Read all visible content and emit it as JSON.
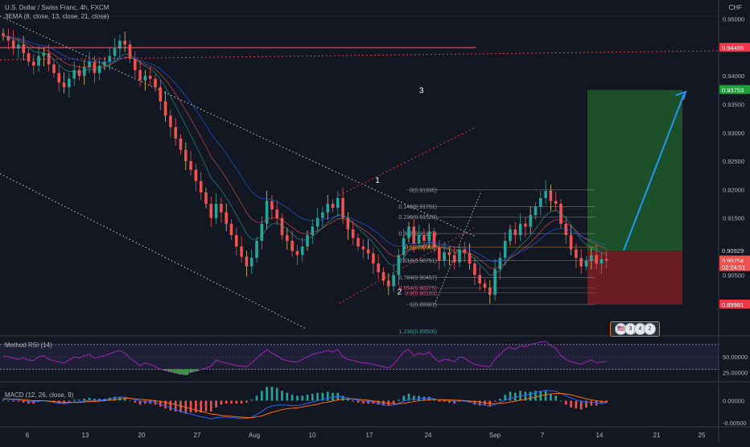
{
  "header": {
    "symbol": "U.S. Dollar / Swiss Franc, 4h, FXCM",
    "indicator": "3EMA (8, close, 13, close, 21, close)",
    "currency": "CHF"
  },
  "panes": {
    "rsi_title": "Method RSI (14)",
    "macd_title": "MACD (12, 26, close, 9)"
  },
  "colors": {
    "background": "#131722",
    "up": "#26a69a",
    "down": "#ef5350",
    "wick_yellow": "#e0c060",
    "target_zone": "#1e5a2a",
    "stop_zone": "#7a1f24",
    "arrow": "#2196f3",
    "resistance": "#f23645",
    "rsi": "#9c27b0"
  },
  "annotations": [
    {
      "label": "1",
      "date": "Sep 8",
      "price": 0.9212
    },
    {
      "label": "2",
      "date": "Sep 12",
      "price": 0.9016
    },
    {
      "label": "3",
      "date": "Sep 16",
      "price": 0.937
    }
  ],
  "bubbles": [
    "3",
    "4",
    "2"
  ],
  "chart_data": {
    "type": "candlestick",
    "x_ticks": [
      "6",
      "13",
      "20",
      "27",
      "Aug",
      "10",
      "17",
      "24",
      "Sep",
      "7",
      "14",
      "21",
      "25"
    ],
    "y_ticks": [
      "0.95000",
      "0.94500",
      "0.94000",
      "0.93500",
      "0.93000",
      "0.92500",
      "0.92000",
      "0.91500",
      "0.90500",
      "0.90000"
    ],
    "ylim": [
      0.895,
      0.9505
    ],
    "price_labels": [
      {
        "text": "0.94495",
        "price": 0.94495,
        "color": "#f23645"
      },
      {
        "text": "0.93753",
        "price": 0.93753,
        "color": "#1e9e3c"
      },
      {
        "text": "0.90929",
        "price": 0.90929,
        "color": "#131722"
      },
      {
        "text": "0.90754",
        "price": 0.90754,
        "color": "#ef5350"
      },
      {
        "text": "02:24:51",
        "price": 0.9064,
        "color": "#ef5350"
      },
      {
        "text": "0.89981",
        "price": 0.89981,
        "color": "#f23645"
      }
    ],
    "fibonacci": [
      {
        "label": "0(0.91995)",
        "price": 0.91995,
        "color": "#9598a1"
      },
      {
        "label": "0.146(0.91701)",
        "price": 0.91701,
        "color": "#9598a1"
      },
      {
        "label": "0.236(0.91520)",
        "price": 0.9152,
        "color": "#9598a1"
      },
      {
        "label": "0.382(0.91227)",
        "price": 0.91227,
        "color": "#9598a1"
      },
      {
        "label": "0.5(0.90988)",
        "price": 0.90988,
        "color": "#f0a030"
      },
      {
        "label": "0.618(0.90751)",
        "price": 0.90751,
        "color": "#9598a1"
      },
      {
        "label": "0.764(0.90457)",
        "price": 0.90457,
        "color": "#9598a1"
      },
      {
        "label": "0.854(0.90275)",
        "price": 0.90275,
        "color": "#e05070"
      },
      {
        "label": "0.9(0.90183)",
        "price": 0.90183,
        "color": "#e05070"
      },
      {
        "label": "1(0.89981)",
        "price": 0.89981,
        "color": "#9598a1"
      },
      {
        "label": "1.236(0.89506)",
        "price": 0.89506,
        "color": "#26a69a"
      }
    ],
    "series": [
      {
        "name": "USDCHF",
        "close": [
          0.947,
          0.9462,
          0.9448,
          0.9455,
          0.944,
          0.9425,
          0.9418,
          0.9435,
          0.944,
          0.942,
          0.9405,
          0.9388,
          0.938,
          0.9395,
          0.941,
          0.94,
          0.9415,
          0.9425,
          0.9405,
          0.9418,
          0.9425,
          0.9435,
          0.9448,
          0.9462,
          0.9455,
          0.943,
          0.941,
          0.9392,
          0.94,
          0.9395,
          0.938,
          0.9355,
          0.933,
          0.931,
          0.929,
          0.927,
          0.925,
          0.9235,
          0.9215,
          0.9195,
          0.9175,
          0.915,
          0.9175,
          0.916,
          0.914,
          0.912,
          0.91,
          0.9082,
          0.9065,
          0.908,
          0.911,
          0.914,
          0.918,
          0.9165,
          0.915,
          0.912,
          0.911,
          0.9092,
          0.9085,
          0.91,
          0.912,
          0.9135,
          0.915,
          0.916,
          0.9175,
          0.9168,
          0.9185,
          0.915,
          0.913,
          0.9115,
          0.91,
          0.9095,
          0.9088,
          0.907,
          0.9055,
          0.904,
          0.903,
          0.905,
          0.9085,
          0.9115,
          0.9135,
          0.9105,
          0.912,
          0.911,
          0.9125,
          0.9098,
          0.9075,
          0.909,
          0.9085,
          0.9072,
          0.9095,
          0.9088,
          0.907,
          0.905,
          0.9035,
          0.9028,
          0.9015,
          0.906,
          0.908,
          0.911,
          0.913,
          0.912,
          0.914,
          0.9135,
          0.9155,
          0.917,
          0.9185,
          0.9198,
          0.918,
          0.9175,
          0.914,
          0.912,
          0.9095,
          0.908,
          0.9065,
          0.9075,
          0.9085,
          0.907,
          0.9078,
          0.9075
        ]
      }
    ],
    "fit_line": [
      {
        "name": "descending-channel-top",
        "from": [
          "Jul 1",
          0.9505
        ],
        "to": [
          "Sep 26",
          0.9117
        ]
      },
      {
        "name": "descending-channel-bottom",
        "from": [
          "Jul 1",
          0.9228
        ],
        "to": [
          "Aug 26",
          0.8955
        ]
      },
      {
        "name": "resistance",
        "from": [
          "Jul 1",
          0.94495
        ],
        "to": [
          "Sep 26",
          0.94495
        ]
      },
      {
        "name": "trend-upper",
        "from": [
          "Sep 1",
          0.919
        ],
        "to": [
          "Sep 26",
          0.931
        ]
      },
      {
        "name": "trend-lower",
        "from": [
          "Sep 1",
          0.9
        ],
        "to": [
          "Sep 26",
          0.9135
        ]
      }
    ],
    "position": {
      "entry": 0.90929,
      "target": 0.93753,
      "stop": 0.89981
    },
    "rsi": {
      "ylim": [
        15,
        80
      ],
      "y_ticks": [
        "50.00000",
        "25.00000"
      ],
      "upper": 70,
      "lower": 30,
      "values": [
        52,
        50,
        48,
        46,
        48,
        45,
        44,
        50,
        52,
        46,
        44,
        42,
        40,
        45,
        50,
        48,
        52,
        54,
        48,
        50,
        52,
        55,
        58,
        60,
        56,
        48,
        42,
        36,
        40,
        38,
        34,
        30,
        28,
        26,
        24,
        22,
        21,
        25,
        27,
        30,
        32,
        35,
        45,
        42,
        40,
        38,
        36,
        35,
        34,
        40,
        48,
        55,
        62,
        56,
        52,
        46,
        44,
        42,
        42,
        46,
        50,
        54,
        56,
        58,
        60,
        58,
        62,
        50,
        46,
        44,
        42,
        40,
        40,
        38,
        36,
        34,
        32,
        38,
        48,
        58,
        62,
        52,
        56,
        54,
        58,
        48,
        42,
        46,
        45,
        42,
        50,
        48,
        42,
        38,
        36,
        35,
        34,
        46,
        54,
        62,
        66,
        62,
        68,
        66,
        70,
        72,
        74,
        75,
        68,
        64,
        52,
        46,
        42,
        40,
        38,
        42,
        45,
        40,
        42,
        42
      ]
    },
    "macd": {
      "ylim": [
        -0.0055,
        0.0035
      ],
      "y_ticks": [
        "0.00000",
        "-0.00500"
      ],
      "macd": [
        0.0005,
        0.0004,
        0.0002,
        0.0002,
        0.0,
        -0.0002,
        -0.0003,
        -0.0001,
        0.0,
        -0.0002,
        -0.0004,
        -0.0006,
        -0.0007,
        -0.0005,
        -0.0003,
        -0.0003,
        -0.0001,
        0.0001,
        0.0,
        0.0001,
        0.0002,
        0.0004,
        0.0006,
        0.0008,
        0.0008,
        0.0005,
        0.0002,
        -0.0001,
        -0.0001,
        -0.0002,
        -0.0004,
        -0.0008,
        -0.0012,
        -0.0016,
        -0.002,
        -0.0024,
        -0.0028,
        -0.003,
        -0.0033,
        -0.0036,
        -0.0038,
        -0.0041,
        -0.0038,
        -0.0037,
        -0.0037,
        -0.0038,
        -0.0039,
        -0.004,
        -0.004,
        -0.0037,
        -0.0031,
        -0.0024,
        -0.0016,
        -0.0012,
        -0.001,
        -0.001,
        -0.001,
        -0.0011,
        -0.0011,
        -0.0009,
        -0.0006,
        -0.0003,
        0.0,
        0.0003,
        0.0006,
        0.0007,
        0.001,
        0.0008,
        0.0006,
        0.0003,
        0.0001,
        -0.0001,
        -0.0002,
        -0.0004,
        -0.0006,
        -0.0009,
        -0.0011,
        -0.001,
        -0.0006,
        -0.0001,
        0.0003,
        0.0003,
        0.0005,
        0.0005,
        0.0006,
        0.0004,
        0.0001,
        0.0001,
        0.0,
        -0.0002,
        0.0,
        -0.0001,
        -0.0003,
        -0.0006,
        -0.0008,
        -0.001,
        -0.0012,
        -0.0008,
        -0.0004,
        0.0001,
        0.0006,
        0.0007,
        0.0011,
        0.0012,
        0.0015,
        0.0018,
        0.0021,
        0.0023,
        0.0022,
        0.0021,
        0.0016,
        0.0011,
        0.0006,
        0.0002,
        -0.0002,
        -0.0003,
        -0.0003,
        -0.0005,
        -0.0005,
        -0.0005
      ],
      "signal": [
        0.0004,
        0.0004,
        0.0003,
        0.0003,
        0.0002,
        0.0001,
        0.0,
        0.0,
        0.0,
        -0.0001,
        -0.0002,
        -0.0003,
        -0.0004,
        -0.0004,
        -0.0004,
        -0.0004,
        -0.0003,
        -0.0002,
        -0.0002,
        -0.0001,
        0.0,
        0.0001,
        0.0002,
        0.0004,
        0.0005,
        0.0005,
        0.0004,
        0.0003,
        0.0002,
        0.0001,
        0.0,
        -0.0002,
        -0.0004,
        -0.0006,
        -0.0009,
        -0.0012,
        -0.0015,
        -0.0018,
        -0.0021,
        -0.0024,
        -0.0027,
        -0.003,
        -0.0031,
        -0.0033,
        -0.0034,
        -0.0035,
        -0.0036,
        -0.0037,
        -0.0038,
        -0.0038,
        -0.0036,
        -0.0034,
        -0.003,
        -0.0026,
        -0.0023,
        -0.002,
        -0.0018,
        -0.0017,
        -0.0016,
        -0.0014,
        -0.0012,
        -0.001,
        -0.0008,
        -0.0005,
        -0.0003,
        -0.0001,
        0.0002,
        0.0003,
        0.0004,
        0.0004,
        0.0003,
        0.0002,
        0.0001,
        -0.0001,
        -0.0002,
        -0.0004,
        -0.0006,
        -0.0007,
        -0.0007,
        -0.0006,
        -0.0004,
        -0.0002,
        0.0,
        0.0001,
        0.0002,
        0.0003,
        0.0002,
        0.0002,
        0.0002,
        0.0001,
        0.0001,
        0.0,
        -0.0001,
        -0.0002,
        -0.0003,
        -0.0005,
        -0.0006,
        -0.0007,
        -0.0006,
        -0.0005,
        -0.0003,
        -0.0001,
        0.0001,
        0.0003,
        0.0006,
        0.0008,
        0.0011,
        0.0013,
        0.0015,
        0.0016,
        0.0016,
        0.0015,
        0.0013,
        0.001,
        0.0007,
        0.0004,
        0.0002,
        0.0,
        -0.0002,
        -0.0003
      ]
    }
  }
}
